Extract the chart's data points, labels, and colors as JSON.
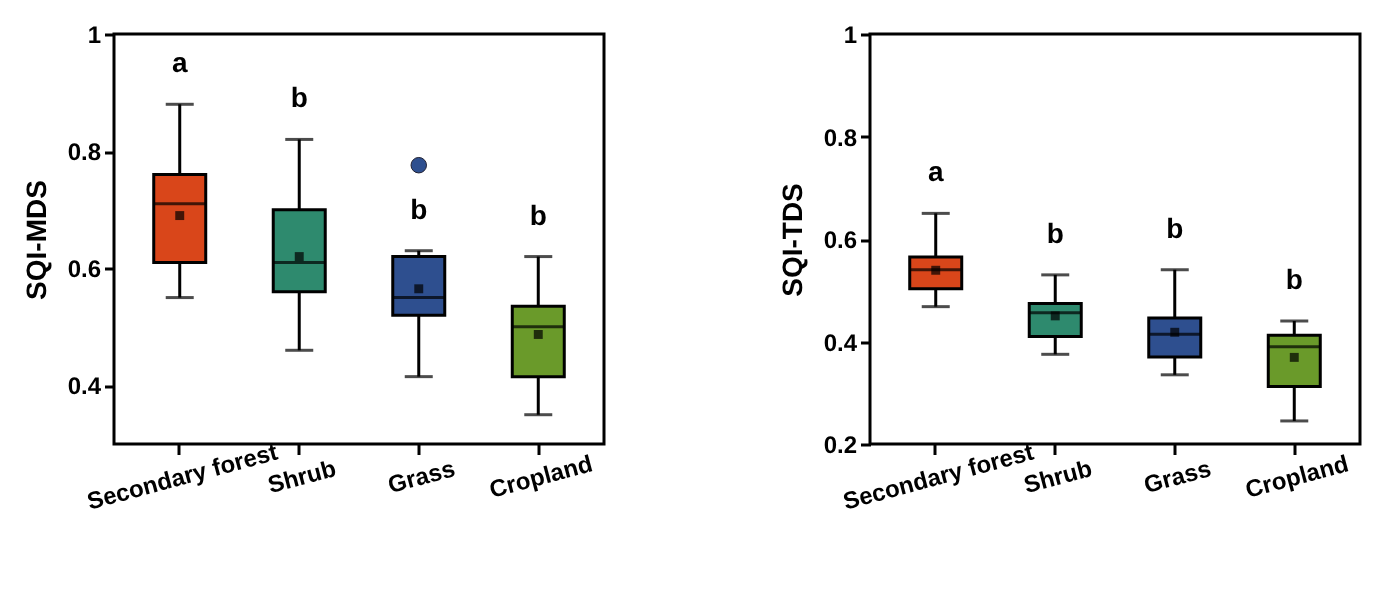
{
  "chart_data": [
    {
      "type": "box",
      "ylabel": "SQI-MDS",
      "categories": [
        "Secondary forest",
        "Shrub",
        "Grass",
        "Cropland"
      ],
      "colors": [
        "#d9461a",
        "#2e8a6e",
        "#2e4f8f",
        "#6a9a2a"
      ],
      "boxes": [
        {
          "low": 0.55,
          "q1": 0.61,
          "median": 0.71,
          "q3": 0.76,
          "high": 0.88,
          "mean": 0.69
        },
        {
          "low": 0.46,
          "q1": 0.56,
          "median": 0.61,
          "q3": 0.7,
          "high": 0.82,
          "mean": 0.62
        },
        {
          "low": 0.415,
          "q1": 0.52,
          "median": 0.55,
          "q3": 0.62,
          "high": 0.63,
          "mean": 0.565,
          "outliers": [
            0.776
          ]
        },
        {
          "low": 0.35,
          "q1": 0.415,
          "median": 0.5,
          "q3": 0.535,
          "high": 0.62,
          "mean": 0.487
        }
      ],
      "ylim": [
        0.3,
        1
      ],
      "yticks": [
        0.4,
        0.6,
        0.8,
        1
      ],
      "annotations": [
        "a",
        "b",
        "b",
        "b"
      ]
    },
    {
      "type": "box",
      "ylabel": "SQI-TDS",
      "categories": [
        "Secondary forest",
        "Shrub",
        "Grass",
        "Cropland"
      ],
      "colors": [
        "#d9461a",
        "#2e8a6e",
        "#2e4f8f",
        "#6a9a2a"
      ],
      "boxes": [
        {
          "low": 0.468,
          "q1": 0.503,
          "median": 0.54,
          "q3": 0.565,
          "high": 0.65,
          "mean": 0.539
        },
        {
          "low": 0.375,
          "q1": 0.41,
          "median": 0.456,
          "q3": 0.474,
          "high": 0.53,
          "mean": 0.45
        },
        {
          "low": 0.335,
          "q1": 0.37,
          "median": 0.414,
          "q3": 0.446,
          "high": 0.54,
          "mean": 0.418
        },
        {
          "low": 0.245,
          "q1": 0.312,
          "median": 0.39,
          "q3": 0.412,
          "high": 0.44,
          "mean": 0.369
        }
      ],
      "ylim": [
        0.2,
        1
      ],
      "yticks": [
        0.2,
        0.4,
        0.6,
        0.8,
        1
      ],
      "annotations": [
        "a",
        "b",
        "b",
        "b"
      ]
    }
  ]
}
